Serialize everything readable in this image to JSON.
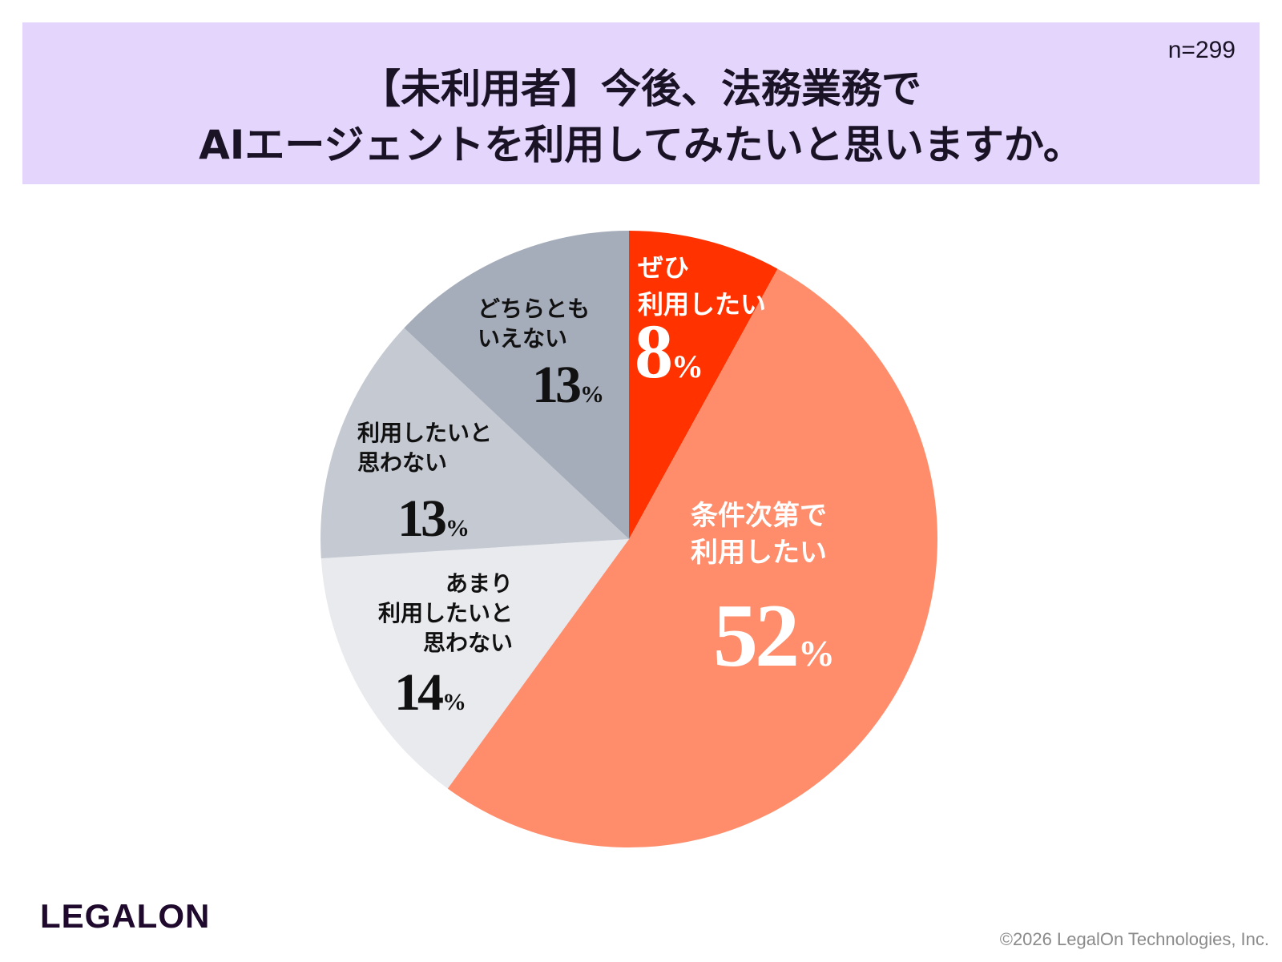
{
  "header": {
    "title_line1": "【未利用者】今後、法務業務で",
    "title_line2": "AIエージェントを利用してみたいと思いますか。",
    "sample_size": "n=299",
    "background_color": "#e4d5fd"
  },
  "chart_data": {
    "type": "pie",
    "title": "【未利用者】今後、法務業務で AIエージェントを利用してみたいと思いますか。",
    "start": "12 o'clock, clockwise",
    "slices": [
      {
        "label_lines": [
          "ぜひ",
          "利用したい"
        ],
        "value": 8,
        "color": "#ff3200",
        "text_color": "#ffffff"
      },
      {
        "label_lines": [
          "条件次第で",
          "利用したい"
        ],
        "value": 52,
        "color": "#ff8d6b",
        "text_color": "#ffffff"
      },
      {
        "label_lines": [
          "あまり",
          "利用したいと",
          "思わない"
        ],
        "value": 14,
        "color": "#e9eaee",
        "text_color": "#111111"
      },
      {
        "label_lines": [
          "利用したいと",
          "思わない"
        ],
        "value": 13,
        "color": "#c5c9d2",
        "text_color": "#111111"
      },
      {
        "label_lines": [
          "どちらとも",
          "いえない"
        ],
        "value": 13,
        "color": "#a6adba",
        "text_color": "#111111"
      }
    ],
    "percent_suffix": "%"
  },
  "footer": {
    "logo": "LEGALON",
    "copyright": "©2026 LegalOn Technologies, Inc."
  }
}
